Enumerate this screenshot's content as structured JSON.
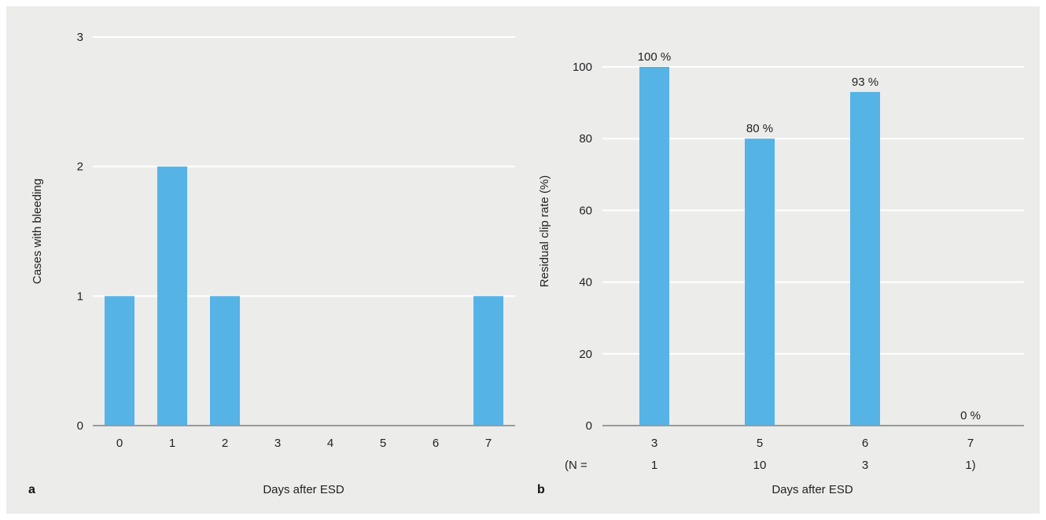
{
  "chart_data": [
    {
      "type": "bar",
      "panel": "a",
      "categories": [
        "0",
        "1",
        "2",
        "3",
        "4",
        "5",
        "6",
        "7"
      ],
      "values": [
        1,
        2,
        1,
        0,
        0,
        0,
        0,
        1
      ],
      "xlabel": "Days after ESD",
      "ylabel": "Cases with bleeding",
      "ylim": [
        0,
        3
      ],
      "yticks": [
        0,
        1,
        2,
        3
      ],
      "color": "#55b3e6",
      "grid": true
    },
    {
      "type": "bar",
      "panel": "b",
      "categories": [
        "3",
        "5",
        "6",
        "7"
      ],
      "values": [
        100,
        80,
        93,
        0
      ],
      "data_labels": [
        "100 %",
        "80 %",
        "93 %",
        "0 %"
      ],
      "n_prefix": "(N =",
      "n_labels": [
        "1",
        "10",
        "3",
        "1)"
      ],
      "xlabel": "Days after ESD",
      "ylabel": "Residual clip rate (%)",
      "ylim": [
        0,
        100
      ],
      "yticks": [
        0,
        20,
        40,
        60,
        80,
        100
      ],
      "color": "#55b3e6",
      "grid": true
    }
  ]
}
